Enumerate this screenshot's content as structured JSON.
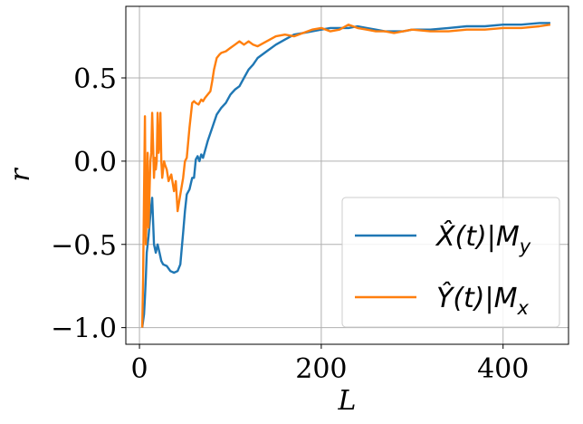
{
  "chart_data": {
    "type": "line",
    "xlabel": "L",
    "ylabel": "r",
    "xlim": [
      -15,
      472
    ],
    "ylim": [
      -1.1,
      0.93
    ],
    "xticks": [
      {
        "value": 0,
        "label": "0"
      },
      {
        "value": 200,
        "label": "200"
      },
      {
        "value": 400,
        "label": "400"
      }
    ],
    "yticks": [
      {
        "value": -1.0,
        "label": "−1.0"
      },
      {
        "value": -0.5,
        "label": "−0.5"
      },
      {
        "value": 0.0,
        "label": "0.0"
      },
      {
        "value": 0.5,
        "label": "0.5"
      }
    ],
    "grid": true,
    "legend_position": "lower-right",
    "series": [
      {
        "name": "X̂(t)|M_y",
        "color": "#1f77b4",
        "x": [
          3,
          5,
          6,
          7,
          8,
          10,
          12,
          14,
          16,
          18,
          20,
          22,
          24,
          26,
          30,
          34,
          38,
          42,
          45,
          48,
          50,
          52,
          55,
          58,
          60,
          62,
          64,
          66,
          68,
          70,
          75,
          80,
          85,
          90,
          95,
          100,
          105,
          110,
          115,
          120,
          125,
          130,
          140,
          150,
          160,
          170,
          180,
          190,
          200,
          210,
          220,
          230,
          240,
          250,
          260,
          270,
          280,
          290,
          300,
          320,
          340,
          360,
          380,
          400,
          420,
          440,
          452
        ],
        "y": [
          -1.0,
          -0.92,
          -0.82,
          -0.7,
          -0.55,
          -0.45,
          -0.32,
          -0.22,
          -0.5,
          -0.55,
          -0.5,
          -0.55,
          -0.6,
          -0.62,
          -0.63,
          -0.66,
          -0.67,
          -0.66,
          -0.62,
          -0.43,
          -0.3,
          -0.2,
          -0.17,
          -0.1,
          -0.1,
          0.01,
          0.03,
          0.0,
          0.04,
          0.02,
          0.12,
          0.2,
          0.28,
          0.32,
          0.35,
          0.4,
          0.43,
          0.45,
          0.5,
          0.55,
          0.58,
          0.62,
          0.66,
          0.7,
          0.73,
          0.76,
          0.77,
          0.78,
          0.79,
          0.8,
          0.8,
          0.8,
          0.81,
          0.8,
          0.79,
          0.78,
          0.78,
          0.78,
          0.79,
          0.79,
          0.8,
          0.81,
          0.81,
          0.82,
          0.82,
          0.83,
          0.83
        ]
      },
      {
        "name": "Ŷ(t)|M_x",
        "color": "#ff7f0e",
        "x": [
          3,
          4,
          5,
          6,
          7,
          8,
          9,
          10,
          11,
          12,
          13,
          14,
          15,
          16,
          17,
          18,
          19,
          20,
          21,
          22,
          23,
          24,
          25,
          26,
          27,
          28,
          30,
          32,
          35,
          38,
          40,
          42,
          45,
          48,
          50,
          52,
          55,
          58,
          60,
          62,
          65,
          68,
          70,
          72,
          75,
          78,
          80,
          82,
          85,
          88,
          90,
          95,
          100,
          105,
          110,
          115,
          120,
          125,
          130,
          140,
          150,
          160,
          170,
          180,
          190,
          200,
          210,
          220,
          230,
          240,
          250,
          260,
          270,
          280,
          290,
          300,
          320,
          340,
          360,
          380,
          400,
          420,
          440,
          452
        ],
        "y": [
          -1.0,
          -0.7,
          -0.2,
          0.27,
          -0.5,
          -0.3,
          0.05,
          -0.4,
          -0.2,
          0.0,
          0.05,
          0.29,
          0.1,
          -0.1,
          0.02,
          -0.05,
          0.0,
          0.29,
          0.05,
          0.1,
          0.29,
          0.0,
          -0.1,
          -0.05,
          0.0,
          -0.02,
          -0.05,
          -0.12,
          -0.08,
          -0.18,
          -0.12,
          -0.3,
          -0.2,
          -0.1,
          0.0,
          0.02,
          0.2,
          0.35,
          0.36,
          0.35,
          0.34,
          0.37,
          0.36,
          0.38,
          0.4,
          0.42,
          0.48,
          0.55,
          0.62,
          0.64,
          0.65,
          0.66,
          0.68,
          0.7,
          0.72,
          0.7,
          0.72,
          0.7,
          0.69,
          0.72,
          0.75,
          0.76,
          0.75,
          0.77,
          0.79,
          0.8,
          0.78,
          0.79,
          0.82,
          0.8,
          0.79,
          0.78,
          0.78,
          0.77,
          0.78,
          0.79,
          0.78,
          0.78,
          0.79,
          0.79,
          0.8,
          0.8,
          0.81,
          0.82
        ]
      }
    ]
  }
}
